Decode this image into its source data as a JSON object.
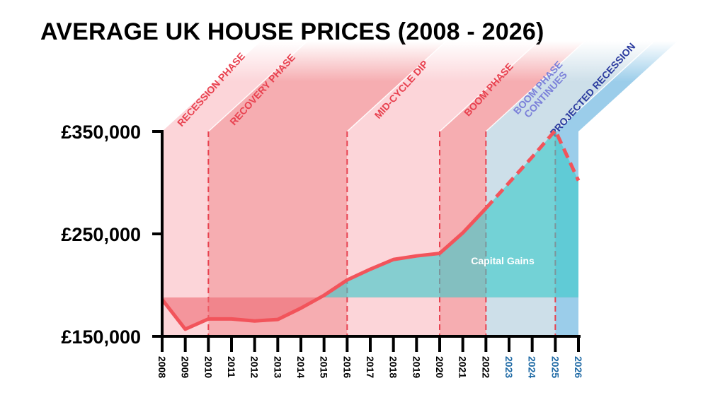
{
  "chart_data": {
    "type": "line",
    "title": "AVERAGE UK HOUSE PRICES (2008 - 2026)",
    "xlabel": "",
    "ylabel": "",
    "x": [
      2008,
      2009,
      2010,
      2011,
      2012,
      2013,
      2014,
      2015,
      2016,
      2017,
      2018,
      2019,
      2020,
      2021,
      2022,
      2023,
      2024,
      2025,
      2026
    ],
    "x_tick_labels": [
      "2008",
      "2009",
      "2010",
      "2011",
      "2012",
      "2013",
      "2014",
      "2015",
      "2016",
      "2017",
      "2018",
      "2019",
      "2020",
      "2021",
      "2022",
      "2023",
      "2024",
      "2025",
      "2026"
    ],
    "projected_from": 2022,
    "series": [
      {
        "values": [
          186000,
          157000,
          167000,
          167000,
          165000,
          166500,
          177500,
          190000,
          205000,
          215500,
          225000,
          228500,
          231000,
          251000,
          275000,
          300000,
          325000,
          351000,
          302000
        ]
      }
    ],
    "baseline": 188000,
    "ylim": [
      150000,
      350000
    ],
    "y_ticks": [
      150000,
      250000,
      350000
    ],
    "y_tick_labels": [
      "£150,000",
      "£250,000",
      "£350,000"
    ],
    "grid": false,
    "annotation": "Capital Gains",
    "phases": [
      {
        "label": "RECESSION PHASE",
        "start": 2008,
        "end": 2010,
        "color": "#fcd5d9",
        "text_color": "#e8414f"
      },
      {
        "label": "RECOVERY PHASE",
        "start": 2010,
        "end": 2016,
        "color": "#f6adb1",
        "text_color": "#e8414f"
      },
      {
        "label": "MID-CYCLE DIP",
        "start": 2016,
        "end": 2020,
        "color": "#fcd5d9",
        "text_color": "#e8414f"
      },
      {
        "label": "BOOM PHASE",
        "start": 2020,
        "end": 2022,
        "color": "#f6adb1",
        "text_color": "#e8414f"
      },
      {
        "label": "BOOM PHASE CONTINUES",
        "lines": [
          "BOOM PHASE",
          "CONTINUES"
        ],
        "start": 2022,
        "end": 2025,
        "color": "#cddfe9",
        "text_color": "#7b80d9"
      },
      {
        "label": "PROJECTED RECESSION",
        "start": 2025,
        "end": 2026,
        "color": "#9bcdea",
        "text_color": "#2a3a9e"
      }
    ],
    "colors": {
      "line": "#f2545b",
      "gain_fill": "#3cc9c9",
      "loss_fill": "#ef6a73",
      "projected_year_label": "#1f6aa5",
      "year_label": "#000000"
    }
  }
}
